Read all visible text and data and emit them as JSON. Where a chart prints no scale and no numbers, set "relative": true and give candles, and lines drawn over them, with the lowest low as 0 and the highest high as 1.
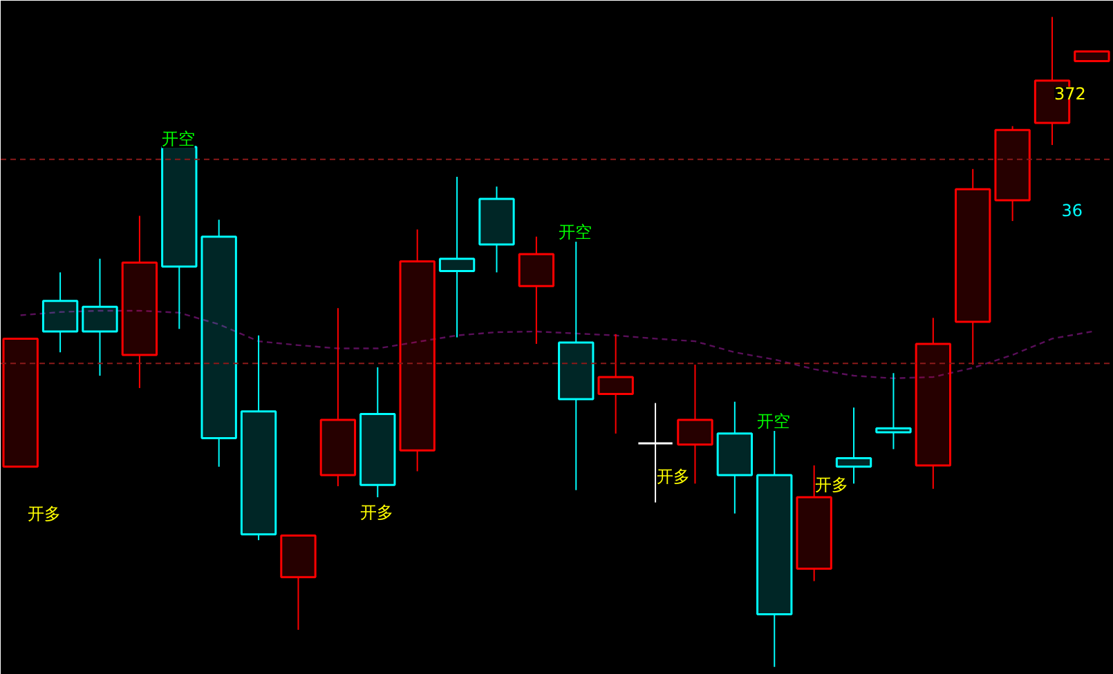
{
  "chart_data": {
    "type": "candlestick",
    "relative": true,
    "categories": [
      null,
      null,
      null,
      null,
      null,
      null,
      null,
      null,
      null,
      null,
      null,
      null,
      null,
      null,
      null,
      null,
      null,
      null,
      null,
      null,
      null,
      null,
      null,
      null,
      null,
      null,
      null,
      null
    ],
    "grid": false,
    "ohlc": [
      [
        0.308,
        0.505,
        0.308,
        0.505
      ],
      [
        0.563,
        0.607,
        0.484,
        0.516
      ],
      [
        0.554,
        0.628,
        0.448,
        0.516
      ],
      [
        0.48,
        0.694,
        0.429,
        0.622
      ],
      [
        0.8,
        0.8,
        0.52,
        0.616
      ],
      [
        0.662,
        0.688,
        0.308,
        0.352
      ],
      [
        0.393,
        0.51,
        0.195,
        0.204
      ],
      [
        0.138,
        0.202,
        0.057,
        0.202
      ],
      [
        0.295,
        0.552,
        0.278,
        0.38
      ],
      [
        0.389,
        0.461,
        0.261,
        0.28
      ],
      [
        0.333,
        0.673,
        0.301,
        0.624
      ],
      [
        0.628,
        0.754,
        0.507,
        0.609
      ],
      [
        0.72,
        0.739,
        0.607,
        0.65
      ],
      [
        0.586,
        0.662,
        0.497,
        0.635
      ],
      [
        0.499,
        0.656,
        0.272,
        0.412
      ],
      [
        0.42,
        0.512,
        0.359,
        0.446
      ],
      [
        0.344,
        0.406,
        0.253,
        0.344
      ],
      [
        0.342,
        0.465,
        0.282,
        0.38
      ],
      [
        0.359,
        0.408,
        0.236,
        0.295
      ],
      [
        0.295,
        0.367,
        0.0,
        0.081
      ],
      [
        0.151,
        0.31,
        0.132,
        0.261
      ],
      [
        0.321,
        0.399,
        0.282,
        0.308
      ],
      [
        0.367,
        0.452,
        0.335,
        0.361
      ],
      [
        0.31,
        0.537,
        0.274,
        0.497
      ],
      [
        0.531,
        0.766,
        0.465,
        0.735
      ],
      [
        0.718,
        0.832,
        0.686,
        0.826
      ],
      [
        0.837,
        1.0,
        0.803,
        0.902
      ],
      [
        0.932,
        0.947,
        0.932,
        0.947
      ]
    ],
    "colors": [
      "#ff0000",
      "#00ffff",
      "#00ffff",
      "#ff0000",
      "#00ffff",
      "#00ffff",
      "#00ffff",
      "#ff0000",
      "#ff0000",
      "#00ffff",
      "#ff0000",
      "#00ffff",
      "#00ffff",
      "#ff0000",
      "#00ffff",
      "#ff0000",
      "#ffffff",
      "#ff0000",
      "#00ffff",
      "#00ffff",
      "#ff0000",
      "#00ffff",
      "#00ffff",
      "#ff0000",
      "#ff0000",
      "#ff0000",
      "#ff0000",
      "#ff0000"
    ],
    "series": [
      {
        "type": "line",
        "color": "#5a0f5a",
        "line_style": "dashed",
        "values": [
          0.541,
          0.546,
          0.548,
          0.548,
          0.545,
          0.527,
          0.501,
          0.495,
          0.49,
          0.49,
          0.5,
          0.51,
          0.515,
          0.516,
          0.513,
          0.51,
          0.505,
          0.501,
          0.484,
          0.473,
          0.458,
          0.448,
          0.444,
          0.446,
          0.46,
          0.48,
          0.505,
          0.516
        ]
      }
    ],
    "ref_lines": [
      {
        "axis": "y",
        "value": 0.781,
        "color": "#8b1a1a",
        "line_style": "dashed"
      },
      {
        "axis": "y",
        "value": 0.467,
        "color": "#8b1a1a",
        "line_style": "dashed"
      }
    ],
    "annotations": [
      "开空",
      "开空",
      "开空",
      "开多",
      "开多",
      "开多",
      "开多",
      "372",
      "36"
    ]
  }
}
